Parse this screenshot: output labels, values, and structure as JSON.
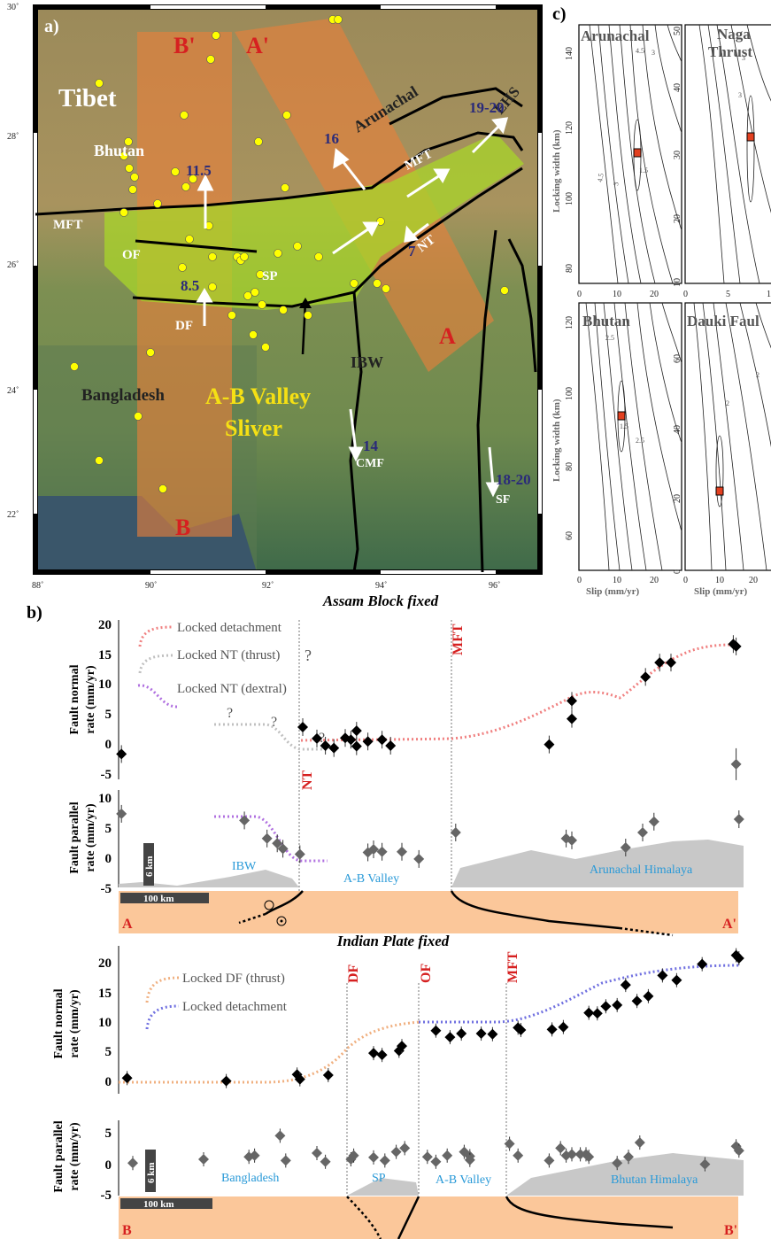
{
  "panel_a": {
    "label": "a)",
    "lat_labels": [
      "30˚",
      "28˚",
      "26˚",
      "24˚",
      "22˚"
    ],
    "lon_labels": [
      "88˚",
      "90˚",
      "92˚",
      "94˚",
      "96˚"
    ],
    "regions": {
      "tibet": "Tibet",
      "bhutan": "Bhutan",
      "arunachal": "Arunachal",
      "bangladesh": "Bangladesh",
      "sliver_line1": "A-B Valley",
      "sliver_line2": "Sliver"
    },
    "faults": {
      "mft_west": "MFT",
      "mft_east": "MFT",
      "of": "OF",
      "df": "DF",
      "sp": "SP",
      "nt": "NT",
      "ibw": "IBW",
      "cmf": "CMF",
      "sf": "SF",
      "ehs": "EHS"
    },
    "rates": {
      "bhutan": "11.5",
      "df": "8.5",
      "arunachal": "16",
      "ehs": "19-20",
      "nt": "7",
      "cmf": "14",
      "sf": "18-20"
    },
    "profile_labels": {
      "a": "A",
      "a_prime": "A'",
      "b": "B",
      "b_prime": "B'"
    },
    "colors": {
      "profile_fill": "#e8803a",
      "sliver_fill": "#a8d52a",
      "gps": "#ffff00",
      "rate_text": "#2a2a7a",
      "profile_label": "#d62020"
    }
  },
  "panel_c": {
    "label": "c)",
    "ylabel": "Locking width (km)",
    "xlabel": "Slip (mm/yr)",
    "plots": [
      {
        "title": "Arunachal",
        "yticks": [
          "140",
          "120",
          "100",
          "80"
        ],
        "xticks": [
          "0",
          "10",
          "20"
        ],
        "contours": [
          "4.5",
          "3",
          "4.5",
          "3",
          "1.5",
          "3",
          "4.5"
        ]
      },
      {
        "title_line1": "Naga",
        "title_line2": "Thrust",
        "yticks": [
          "50",
          "40",
          "30",
          "20",
          "10"
        ],
        "xticks": [
          "0",
          "5",
          "1"
        ],
        "contours": [
          "3",
          "3"
        ]
      },
      {
        "title": "Bhutan",
        "yticks": [
          "120",
          "100",
          "80",
          "60"
        ],
        "xticks": [
          "0",
          "10",
          "20"
        ],
        "contours": [
          "2.5",
          "2.5",
          "1.5",
          "2.5",
          "2.5"
        ]
      },
      {
        "title": "Dauki Faul",
        "yticks": [
          "60",
          "40",
          "20",
          "0"
        ],
        "xticks": [
          "0",
          "10",
          "20"
        ],
        "contours": [
          "2",
          "2",
          "2",
          "3.5"
        ]
      }
    ]
  },
  "panel_b": {
    "label": "b)",
    "top_title": "Assam Block fixed",
    "bottom_title": "Indian Plate fixed",
    "ylabel_normal": "Fault normal rate (mm/yr)",
    "ylabel_normal_1": "Fault normal",
    "ylabel_normal_2": "rate (mm/yr)",
    "ylabel_parallel_1": "Fault parallel",
    "ylabel_parallel_2": "rate (mm/yr)",
    "top_normal_yticks": [
      "20",
      "15",
      "10",
      "5",
      "0",
      "-5"
    ],
    "top_parallel_yticks": [
      "10",
      "5",
      "0",
      "-5"
    ],
    "bot_normal_yticks": [
      "20",
      "15",
      "10",
      "5",
      "0"
    ],
    "bot_parallel_yticks": [
      "5",
      "0",
      "-5"
    ],
    "legend_top": [
      "Locked detachment",
      "Locked NT (thrust)",
      "Locked NT (dextral)"
    ],
    "legend_bottom": [
      "Locked DF (thrust)",
      "Locked detachment"
    ],
    "q": "?",
    "top_vlines": [
      "MFT",
      "NT"
    ],
    "bot_vlines": [
      "DF",
      "OF",
      "MFT"
    ],
    "top_regions": [
      "IBW",
      "A-B Valley",
      "Arunachal Himalaya"
    ],
    "bot_regions": [
      "Bangladesh",
      "SP",
      "A-B Valley",
      "Bhutan Himalaya"
    ],
    "scale_vert": "6 km",
    "scale_horiz": "100 km",
    "ends_top": [
      "A",
      "A'"
    ],
    "ends_bot": [
      "B",
      "B'"
    ],
    "colors": {
      "detachment_top": "#f08080",
      "nt_thrust": "#c0c0c0",
      "nt_dextral": "#b070e0",
      "df_thrust": "#f0b080",
      "detachment_bot": "#7070e0",
      "topo": "#c8c8c8",
      "section": "#fbc79a",
      "region_text": "#2a9ad8",
      "vline_text": "#d62020"
    }
  },
  "chart_data": [
    {
      "type": "scatter",
      "title": "Assam Block fixed",
      "ylabel": "Fault normal rate (mm/yr)",
      "ylim": [
        -5,
        20
      ],
      "series": [
        {
          "name": "Locked detachment",
          "values": [
            [
              760,
              0.5
            ],
            [
              800,
              4.8
            ],
            [
              800,
              7.8
            ],
            [
              930,
              11.8
            ],
            [
              955,
              14.2
            ],
            [
              975,
              14.2
            ],
            [
              1085,
              17.3
            ],
            [
              1090,
              16.9
            ]
          ]
        },
        {
          "name": "Locked NT (thrust)",
          "values": [
            [
              325,
              3.4
            ],
            [
              350,
              1.5
            ],
            [
              365,
              0.3
            ],
            [
              380,
              -0.1
            ],
            [
              420,
              2.8
            ]
          ]
        },
        {
          "name": "Locked NT (dextral)",
          "values": []
        }
      ]
    },
    {
      "type": "scatter",
      "title": "Indian Plate fixed",
      "ylabel": "Fault normal rate (mm/yr)",
      "ylim": [
        -5,
        22
      ],
      "series": [
        {
          "name": "Locked DF (thrust)",
          "values": [
            [
              15,
              0.7
            ],
            [
              190,
              0.2
            ],
            [
              315,
              1.3
            ],
            [
              320,
              0.5
            ],
            [
              370,
              1.2
            ],
            [
              450,
              4.9
            ],
            [
              465,
              4.6
            ],
            [
              495,
              5.3
            ],
            [
              500,
              6.1
            ]
          ]
        },
        {
          "name": "Locked detachment",
          "values": [
            [
              560,
              8.7
            ],
            [
              585,
              7.6
            ],
            [
              605,
              8.2
            ],
            [
              640,
              8.2
            ],
            [
              660,
              8.1
            ],
            [
              705,
              9.2
            ],
            [
              710,
              8.8
            ],
            [
              765,
              8.9
            ],
            [
              785,
              9.3
            ],
            [
              830,
              11.7
            ],
            [
              845,
              11.6
            ],
            [
              860,
              12.8
            ],
            [
              880,
              13.0
            ],
            [
              895,
              16.4
            ],
            [
              915,
              13.7
            ],
            [
              935,
              14.5
            ],
            [
              960,
              18.0
            ],
            [
              985,
              17.2
            ],
            [
              1030,
              19.9
            ],
            [
              1090,
              21.4
            ],
            [
              1095,
              20.9
            ]
          ]
        }
      ]
    }
  ]
}
